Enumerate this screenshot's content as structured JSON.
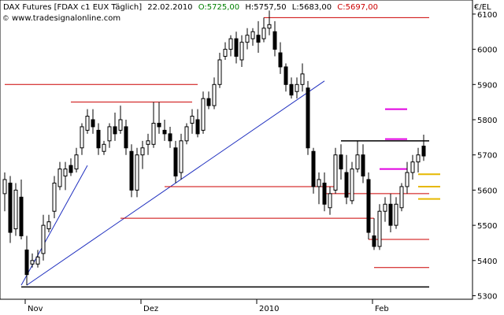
{
  "header": {
    "instrument": "DAX Futures [FDAX c1 EUX  Täglich]",
    "date": "22.02.2010",
    "open_label": "O:5725,00",
    "high_label": "H:5757,50",
    "low_label": "L:5683,00",
    "close_label": "C:5697,00",
    "watermark": "www.tradesignalonline.com",
    "currency": "€/EL",
    "colors": {
      "open": "#008000",
      "high": "#000000",
      "low": "#000000",
      "close": "#cc0000"
    }
  },
  "chart_data": {
    "type": "candlestick",
    "y_unit": "€/EL",
    "ylim": [
      5290,
      6140
    ],
    "yticks": [
      {
        "value": 6100,
        "label": "6100"
      },
      {
        "value": 6000,
        "label": "6000"
      },
      {
        "value": 5900,
        "label": "5900"
      },
      {
        "value": 5800,
        "label": "5800"
      },
      {
        "value": 5700,
        "label": "5700"
      },
      {
        "value": 5600,
        "label": "5600"
      },
      {
        "value": 5500,
        "label": "5500"
      },
      {
        "value": 5400,
        "label": "5400"
      },
      {
        "value": 5300,
        "label": "5300"
      }
    ],
    "xticks": [
      {
        "label": "Nov",
        "index": 4
      },
      {
        "label": "Dez",
        "index": 25
      },
      {
        "label": "2010",
        "index": 46
      },
      {
        "label": "Feb",
        "index": 67
      }
    ],
    "candles": [
      [
        5590,
        5650,
        5540,
        5630
      ],
      [
        5620,
        5640,
        5450,
        5480
      ],
      [
        5490,
        5620,
        5470,
        5600
      ],
      [
        5580,
        5630,
        5460,
        5470
      ],
      [
        5430,
        5470,
        5330,
        5360
      ],
      [
        5390,
        5420,
        5380,
        5400
      ],
      [
        5390,
        5430,
        5380,
        5410
      ],
      [
        5420,
        5530,
        5400,
        5500
      ],
      [
        5490,
        5530,
        5480,
        5510
      ],
      [
        5540,
        5640,
        5520,
        5620
      ],
      [
        5610,
        5680,
        5600,
        5660
      ],
      [
        5640,
        5680,
        5600,
        5660
      ],
      [
        5670,
        5690,
        5640,
        5650
      ],
      [
        5660,
        5720,
        5650,
        5700
      ],
      [
        5720,
        5790,
        5700,
        5780
      ],
      [
        5770,
        5830,
        5760,
        5810
      ],
      [
        5800,
        5830,
        5760,
        5780
      ],
      [
        5770,
        5790,
        5700,
        5720
      ],
      [
        5710,
        5740,
        5700,
        5730
      ],
      [
        5740,
        5790,
        5720,
        5780
      ],
      [
        5780,
        5820,
        5740,
        5760
      ],
      [
        5770,
        5840,
        5760,
        5800
      ],
      [
        5780,
        5800,
        5700,
        5720
      ],
      [
        5710,
        5730,
        5580,
        5600
      ],
      [
        5600,
        5720,
        5580,
        5700
      ],
      [
        5700,
        5740,
        5660,
        5720
      ],
      [
        5730,
        5760,
        5700,
        5740
      ],
      [
        5730,
        5850,
        5720,
        5790
      ],
      [
        5790,
        5850,
        5760,
        5780
      ],
      [
        5770,
        5800,
        5740,
        5760
      ],
      [
        5760,
        5780,
        5720,
        5740
      ],
      [
        5720,
        5740,
        5620,
        5640
      ],
      [
        5650,
        5760,
        5630,
        5740
      ],
      [
        5740,
        5790,
        5730,
        5780
      ],
      [
        5790,
        5830,
        5760,
        5810
      ],
      [
        5800,
        5830,
        5750,
        5760
      ],
      [
        5770,
        5880,
        5760,
        5860
      ],
      [
        5860,
        5880,
        5830,
        5840
      ],
      [
        5840,
        5920,
        5830,
        5900
      ],
      [
        5900,
        5990,
        5890,
        5970
      ],
      [
        5980,
        6020,
        5970,
        6000
      ],
      [
        6000,
        6040,
        5980,
        6030
      ],
      [
        6030,
        6050,
        5960,
        5980
      ],
      [
        5970,
        6040,
        5950,
        6020
      ],
      [
        6020,
        6060,
        6000,
        6040
      ],
      [
        6030,
        6060,
        6010,
        6050
      ],
      [
        6040,
        6080,
        5990,
        6020
      ],
      [
        6030,
        6090,
        6020,
        6060
      ],
      [
        6060,
        6110,
        6040,
        6070
      ],
      [
        6050,
        6080,
        5980,
        6000
      ],
      [
        5990,
        6020,
        5930,
        5950
      ],
      [
        5950,
        5960,
        5880,
        5900
      ],
      [
        5900,
        5920,
        5860,
        5870
      ],
      [
        5880,
        5920,
        5860,
        5900
      ],
      [
        5900,
        5960,
        5880,
        5930
      ],
      [
        5890,
        5910,
        5700,
        5720
      ],
      [
        5710,
        5720,
        5590,
        5610
      ],
      [
        5610,
        5650,
        5560,
        5630
      ],
      [
        5620,
        5650,
        5540,
        5560
      ],
      [
        5550,
        5610,
        5530,
        5590
      ],
      [
        5600,
        5720,
        5590,
        5700
      ],
      [
        5700,
        5730,
        5630,
        5660
      ],
      [
        5650,
        5700,
        5560,
        5580
      ],
      [
        5570,
        5680,
        5560,
        5660
      ],
      [
        5660,
        5740,
        5650,
        5700
      ],
      [
        5700,
        5730,
        5620,
        5640
      ],
      [
        5630,
        5650,
        5460,
        5480
      ],
      [
        5470,
        5520,
        5430,
        5440
      ],
      [
        5440,
        5560,
        5430,
        5540
      ],
      [
        5540,
        5580,
        5510,
        5560
      ],
      [
        5560,
        5590,
        5480,
        5500
      ],
      [
        5500,
        5580,
        5490,
        5560
      ],
      [
        5550,
        5620,
        5540,
        5610
      ],
      [
        5610,
        5680,
        5590,
        5650
      ],
      [
        5650,
        5700,
        5630,
        5680
      ],
      [
        5680,
        5720,
        5650,
        5700
      ],
      [
        5725,
        5757.5,
        5683,
        5697
      ]
    ],
    "overlays": {
      "trendlines": [
        {
          "from": [
            3,
            5330
          ],
          "to": [
            15,
            5670
          ]
        },
        {
          "from": [
            4,
            5330
          ],
          "to": [
            58,
            5910
          ]
        }
      ],
      "red_levels": [
        {
          "from": 0,
          "to": 35,
          "y": 5900
        },
        {
          "from": 12,
          "to": 34,
          "y": 5850
        },
        {
          "from": 47,
          "to": 77,
          "y": 6090
        },
        {
          "from": 29,
          "to": 60,
          "y": 5610
        },
        {
          "from": 21,
          "to": 67,
          "y": 5520
        },
        {
          "from": 58,
          "to": 77,
          "y": 5590
        },
        {
          "from": 66,
          "to": 77,
          "y": 5460
        },
        {
          "from": 67,
          "to": 77,
          "y": 5380
        }
      ],
      "black_levels": [
        {
          "from": 3,
          "to": 77,
          "y": 5325
        },
        {
          "from": 61,
          "to": 77,
          "y": 5740
        }
      ],
      "magenta_levels": [
        {
          "from": 69,
          "to": 73,
          "y": 5830
        },
        {
          "from": 69,
          "to": 73,
          "y": 5745
        },
        {
          "from": 68,
          "to": 73,
          "y": 5660
        }
      ],
      "gold_levels": [
        {
          "from": 75,
          "to": 79,
          "y": 5645
        },
        {
          "from": 75,
          "to": 79,
          "y": 5610
        },
        {
          "from": 75,
          "to": 79,
          "y": 5575
        }
      ]
    }
  }
}
